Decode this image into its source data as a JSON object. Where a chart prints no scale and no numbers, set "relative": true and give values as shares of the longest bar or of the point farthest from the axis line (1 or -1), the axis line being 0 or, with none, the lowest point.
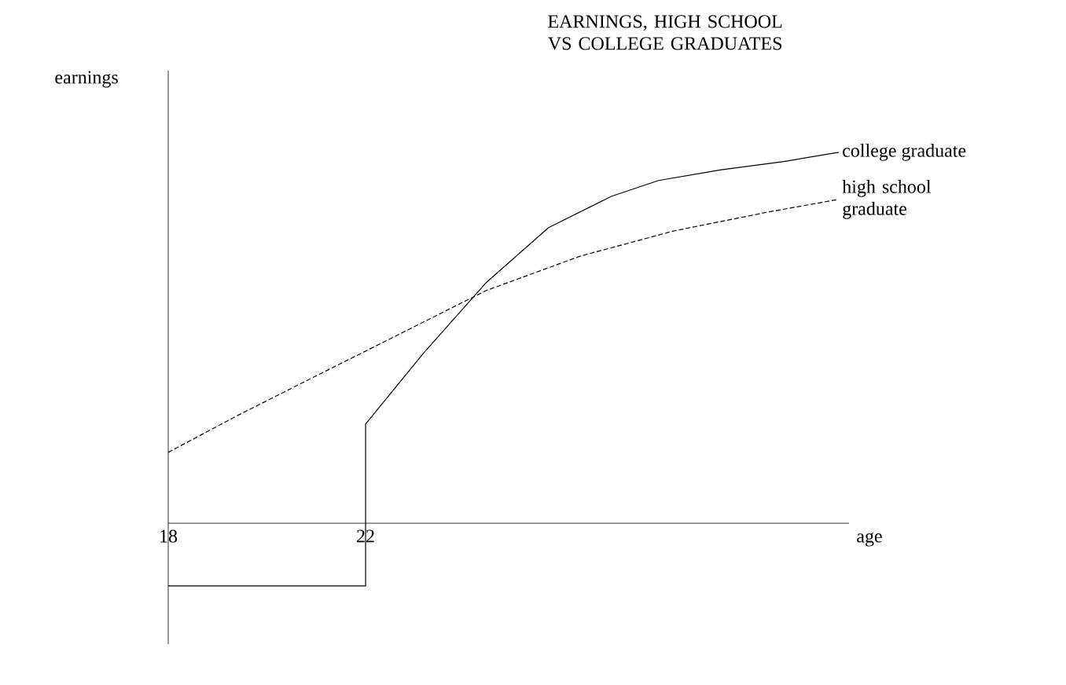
{
  "chart_data": {
    "type": "line",
    "title": "EARNINGS, HIGH SCHOOL VS COLLEGE GRADUATES",
    "xlabel": "age",
    "ylabel": "earnings",
    "relative": true,
    "xlim": [
      18,
      31.8
    ],
    "xticks": [
      18,
      22
    ],
    "marker": "none",
    "series": [
      {
        "name": "college graduate",
        "color": "#000000",
        "line_style": "solid",
        "x": [
          18,
          22,
          22,
          23.17,
          24.44,
          25.71,
          26.98,
          27.94,
          29.21,
          30.48,
          31.59
        ],
        "values": [
          -0.169,
          -0.169,
          0.267,
          0.458,
          0.648,
          0.797,
          0.881,
          0.924,
          0.953,
          0.975,
          1
        ]
      },
      {
        "name": "high school graduate",
        "color": "#000000",
        "line_style": "dashed",
        "x": [
          18,
          19.37,
          20.95,
          22.54,
          24.44,
          26.35,
          28.25,
          30.16,
          31.59
        ],
        "values": [
          0.191,
          0.288,
          0.394,
          0.5,
          0.627,
          0.72,
          0.788,
          0.839,
          0.873
        ]
      }
    ]
  }
}
